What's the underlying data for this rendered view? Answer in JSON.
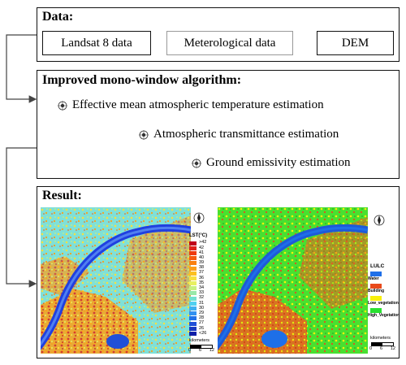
{
  "data_box": {
    "title": "Data:",
    "items": [
      "Landsat 8 data",
      "Meterological data",
      "DEM"
    ]
  },
  "algorithm_box": {
    "title": "Improved mono-window algorithm:",
    "steps": [
      "Effective mean atmospheric temperature estimation",
      "Atmospheric transmittance estimation",
      "Ground emissivity estimation"
    ]
  },
  "result_box": {
    "title": "Result:",
    "lst_legend": {
      "title": "LST(°C)",
      "entries": [
        ">42",
        "42",
        "41",
        "40",
        "39",
        "38",
        "37",
        "36",
        "35",
        "34",
        "33",
        "32",
        "31",
        "30",
        "29",
        "28",
        "27",
        "26",
        "<26"
      ],
      "colors": [
        "#c0001a",
        "#e0201a",
        "#ee3a10",
        "#f65a10",
        "#fa8010",
        "#fca018",
        "#fcc020",
        "#f8e040",
        "#e8f060",
        "#c8f080",
        "#98e8a8",
        "#70e0d0",
        "#50d0f0",
        "#40b0f0",
        "#3090f0",
        "#2070e8",
        "#2050d8",
        "#1838c0",
        "#1020a8"
      ]
    },
    "lulc_legend": {
      "title": "LULC",
      "classes": [
        {
          "name": "Water",
          "color": "#1e6fe8"
        },
        {
          "name": "Building",
          "color": "#e84a1c"
        },
        {
          "name": "Low_vegetation",
          "color": "#f8f00a"
        },
        {
          "name": "High_Vegetation",
          "color": "#28e030"
        }
      ]
    },
    "scale": {
      "unit": "kilometers",
      "ticks": [
        "0",
        "6",
        "12"
      ]
    },
    "north_label": "N"
  }
}
